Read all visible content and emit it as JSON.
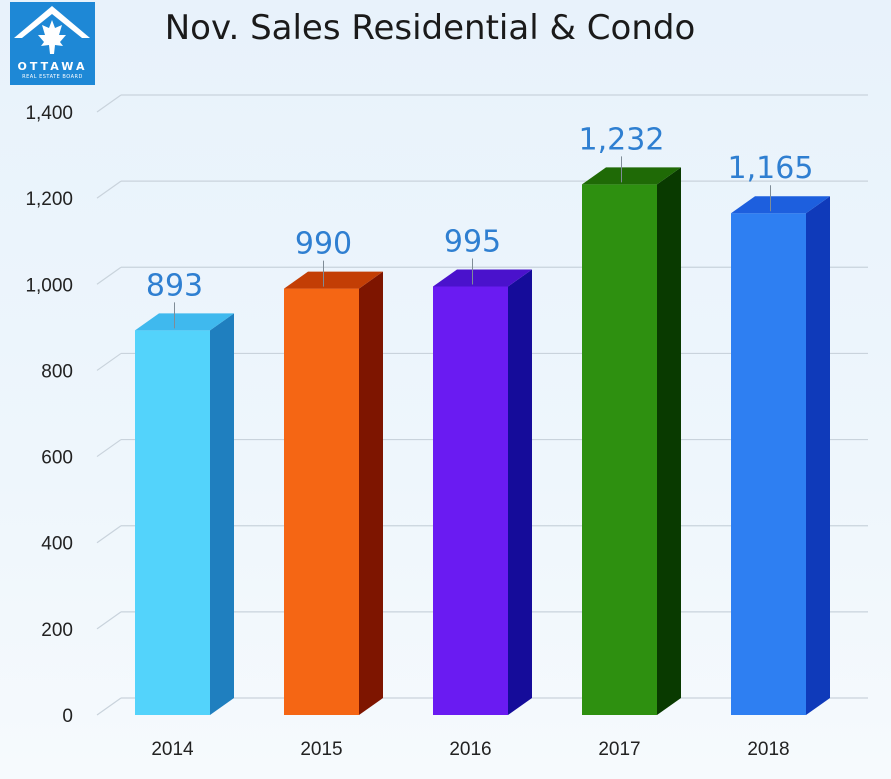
{
  "logo": {
    "name": "OTTAWA",
    "subtitle": "REAL ESTATE BOARD"
  },
  "chart_data": {
    "type": "bar",
    "title": "Nov. Sales Residential & Condo",
    "categories": [
      "2014",
      "2015",
      "2016",
      "2017",
      "2018"
    ],
    "values": [
      893,
      990,
      995,
      1232,
      1165
    ],
    "data_labels": [
      "893",
      "990",
      "995",
      "1,232",
      "1,165"
    ],
    "ylim": [
      0,
      1400
    ],
    "yticks": [
      0,
      200,
      400,
      600,
      800,
      1000,
      1200,
      1400
    ],
    "ytick_labels": [
      "0",
      "200",
      "400",
      "600",
      "800",
      "1,000",
      "1,200",
      "1,400"
    ],
    "grid": true,
    "legend": "none",
    "bar_style": "3d",
    "colors": {
      "front": [
        "#53d3fb",
        "#f56614",
        "#6a1bf2",
        "#2e9010",
        "#2e7ff2"
      ],
      "side": [
        "#1f7fbf",
        "#7e1500",
        "#150c9a",
        "#093a00",
        "#0f3aba"
      ],
      "top": [
        "#3fb9ee",
        "#c33e05",
        "#4a12cc",
        "#1f6a06",
        "#1d5fde"
      ],
      "data_label": "#2f7fd1"
    }
  }
}
